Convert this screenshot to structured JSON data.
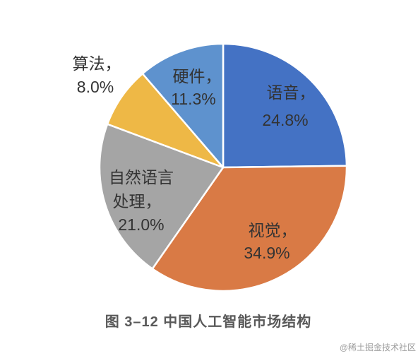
{
  "chart_data": {
    "type": "pie",
    "title": "图 3–12 中国人工智能市场结构",
    "label_separator": "，",
    "value_unit": "%",
    "slices": [
      {
        "label": "语音",
        "value": 24.8,
        "color": "#4472C4"
      },
      {
        "label": "视觉",
        "value": 34.9,
        "color": "#D97A45"
      },
      {
        "label": "自然语言处理",
        "value": 21.0,
        "color": "#A5A5A5"
      },
      {
        "label": "算法",
        "value": 8.0,
        "color": "#EEB846"
      },
      {
        "label": "硬件",
        "value": 11.3,
        "color": "#5E92CE"
      }
    ]
  },
  "watermark": "@稀土掘金技术社区"
}
